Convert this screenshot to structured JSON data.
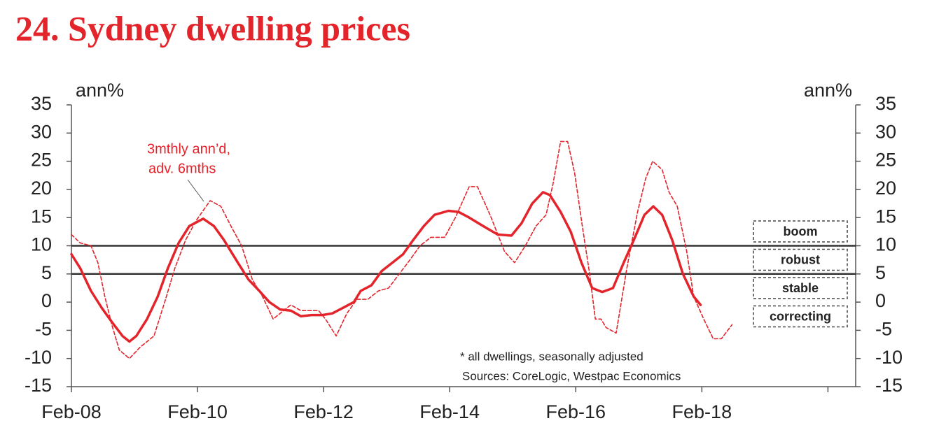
{
  "chart_data": {
    "type": "line",
    "title": "24. Sydney dwelling prices",
    "ylabel": "ann%",
    "y2label": "ann%",
    "annotation": [
      "3mthly ann’d,",
      "adv. 6mths"
    ],
    "footnotes": [
      "* all dwellings, seasonally adjusted",
      "Sources: CoreLogic, Westpac Economics"
    ],
    "zone_labels": [
      "boom",
      "robust",
      "stable",
      "correcting"
    ],
    "reference_lines": [
      10,
      5
    ],
    "xlim": [
      2008.08,
      2020.52
    ],
    "xticks": [
      {
        "value": 2008.08,
        "label": "Feb-08"
      },
      {
        "value": 2010.08,
        "label": "Feb-10"
      },
      {
        "value": 2012.08,
        "label": "Feb-12"
      },
      {
        "value": 2014.08,
        "label": "Feb-14"
      },
      {
        "value": 2016.08,
        "label": "Feb-16"
      },
      {
        "value": 2018.08,
        "label": "Feb-18"
      },
      {
        "value": 2020.08,
        "label": null
      }
    ],
    "ylim": [
      -15,
      35
    ],
    "yticks": [
      -15,
      -10,
      -5,
      0,
      5,
      10,
      15,
      20,
      25,
      30,
      35
    ],
    "y2lim": [
      -15,
      35
    ],
    "y2ticks": [
      -15,
      -10,
      -5,
      0,
      5,
      10,
      15,
      20,
      25,
      30,
      35
    ],
    "series": [
      {
        "color": "#e3242b",
        "style": "solid",
        "x": [
          2008.08,
          2008.22,
          2008.39,
          2008.56,
          2008.72,
          2008.89,
          2009.0,
          2009.11,
          2009.28,
          2009.45,
          2009.61,
          2009.78,
          2009.95,
          2010.17,
          2010.34,
          2010.5,
          2010.72,
          2010.89,
          2011.06,
          2011.22,
          2011.39,
          2011.56,
          2011.72,
          2011.89,
          2012.06,
          2012.22,
          2012.39,
          2012.56,
          2012.67,
          2012.84,
          2013.0,
          2013.17,
          2013.34,
          2013.5,
          2013.67,
          2013.84,
          2014.06,
          2014.22,
          2014.39,
          2014.61,
          2014.84,
          2015.06,
          2015.22,
          2015.39,
          2015.56,
          2015.67,
          2015.84,
          2016.0,
          2016.17,
          2016.34,
          2016.5,
          2016.67,
          2016.84,
          2017.0,
          2017.17,
          2017.31,
          2017.45,
          2017.61,
          2017.78,
          2017.95,
          2018.06
        ],
        "values": [
          8.5,
          6,
          2,
          -1,
          -3.5,
          -6,
          -7,
          -6,
          -3,
          1,
          6,
          10.5,
          13.5,
          14.8,
          13.5,
          11,
          7,
          4,
          2,
          0,
          -1.3,
          -1.5,
          -2.5,
          -2.3,
          -2.3,
          -2,
          -1,
          0,
          2,
          3,
          5.5,
          7,
          8.5,
          11,
          13.5,
          15.5,
          16.2,
          16,
          15,
          13.5,
          12,
          11.8,
          14,
          17.5,
          19.5,
          19,
          16,
          12.5,
          7,
          2.5,
          1.8,
          2.5,
          7,
          11,
          15.5,
          17,
          15.5,
          11,
          5,
          1,
          -0.5
        ]
      },
      {
        "color": "#e3242b",
        "style": "dashed",
        "x": [
          2008.08,
          2008.22,
          2008.39,
          2008.5,
          2008.61,
          2008.72,
          2008.84,
          2009.0,
          2009.17,
          2009.39,
          2009.56,
          2009.72,
          2009.89,
          2010.06,
          2010.28,
          2010.45,
          2010.61,
          2010.78,
          2010.95,
          2011.11,
          2011.28,
          2011.39,
          2011.56,
          2011.72,
          2011.89,
          2012.0,
          2012.11,
          2012.28,
          2012.45,
          2012.61,
          2012.78,
          2012.95,
          2013.11,
          2013.28,
          2013.45,
          2013.61,
          2013.78,
          2014.0,
          2014.17,
          2014.39,
          2014.52,
          2014.72,
          2014.95,
          2015.11,
          2015.28,
          2015.45,
          2015.61,
          2015.72,
          2015.84,
          2015.95,
          2016.06,
          2016.19,
          2016.3,
          2016.39,
          2016.48,
          2016.56,
          2016.72,
          2016.89,
          2017.06,
          2017.19,
          2017.3,
          2017.45,
          2017.56,
          2017.69,
          2017.84,
          2017.95,
          2018.11,
          2018.26,
          2018.39,
          2018.56
        ],
        "values": [
          12,
          10.5,
          10,
          7,
          1,
          -4,
          -8.5,
          -10,
          -8,
          -6,
          0,
          6,
          11,
          14.5,
          18,
          17,
          13.5,
          10,
          4,
          1,
          -3,
          -2,
          -0.5,
          -1.5,
          -1.5,
          -1.5,
          -3,
          -6,
          -2,
          0.5,
          0.5,
          2,
          2.5,
          5,
          7.5,
          10,
          11.5,
          11.5,
          15,
          20.5,
          20.5,
          15.5,
          9,
          7,
          10,
          13.5,
          15.5,
          21,
          28.5,
          28.5,
          23,
          13,
          5,
          -3,
          -3,
          -4.5,
          -5.5,
          6,
          16,
          22,
          25,
          23.5,
          19.5,
          17,
          9,
          1,
          -3,
          -6.5,
          -6.5,
          -4
        ]
      }
    ]
  }
}
